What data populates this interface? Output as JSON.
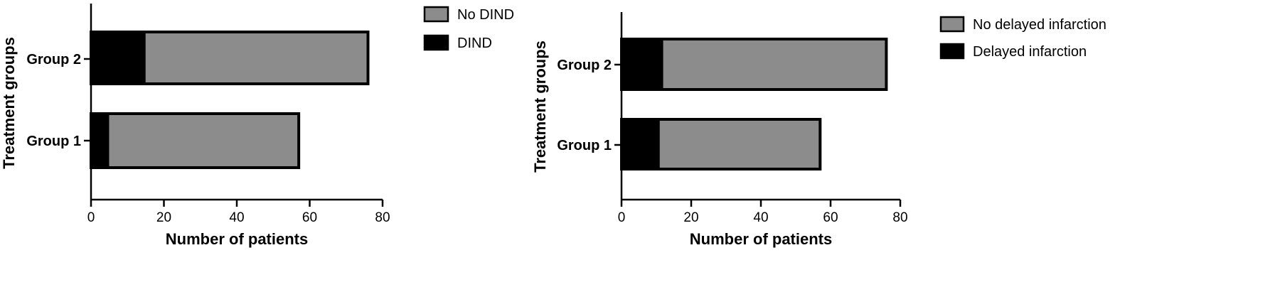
{
  "colors": {
    "event": "#000000",
    "no_event": "#8c8c8c",
    "outline": "#000000"
  },
  "chart_data": [
    {
      "type": "bar",
      "orientation": "horizontal",
      "stacked": true,
      "categories": [
        "Group 2",
        "Group 1"
      ],
      "series": [
        {
          "name": "DIND",
          "values": [
            15,
            5
          ]
        },
        {
          "name": "No DIND",
          "values": [
            61,
            52
          ]
        }
      ],
      "xlabel": "Number of patients",
      "ylabel": "Treatment groups",
      "xlim": [
        0,
        80
      ],
      "xticks": [
        "0",
        "20",
        "40",
        "60",
        "80"
      ],
      "legend": {
        "placement": "right",
        "entries": [
          "No DIND",
          "DIND"
        ]
      },
      "grid": false
    },
    {
      "type": "bar",
      "orientation": "horizontal",
      "stacked": true,
      "categories": [
        "Group 2",
        "Group 1"
      ],
      "series": [
        {
          "name": "Delayed infarction",
          "values": [
            12,
            11
          ]
        },
        {
          "name": "No delayed infarction",
          "values": [
            64,
            46
          ]
        }
      ],
      "xlabel": "Number of patients",
      "ylabel": "Treatment groups",
      "xlim": [
        0,
        80
      ],
      "xticks": [
        "0",
        "20",
        "40",
        "60",
        "80"
      ],
      "legend": {
        "placement": "right",
        "entries": [
          "No delayed infarction",
          "Delayed infarction"
        ]
      },
      "grid": false
    }
  ]
}
